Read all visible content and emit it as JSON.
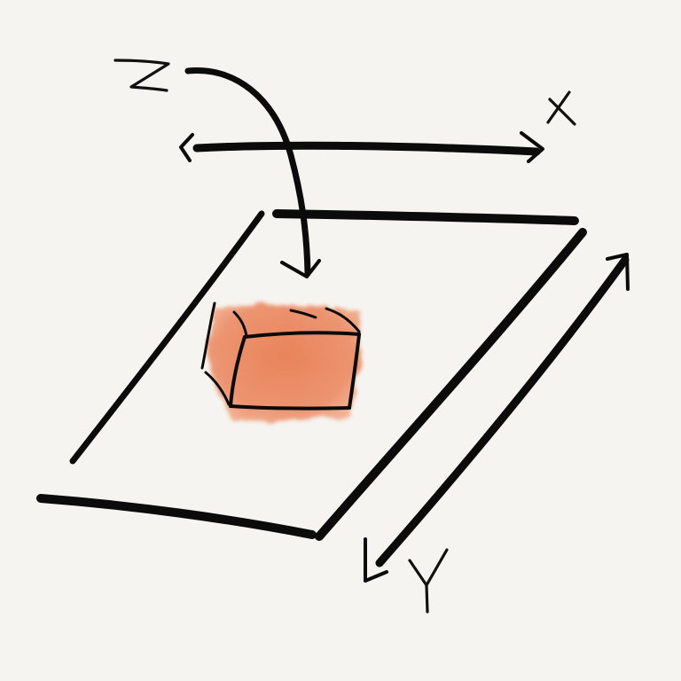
{
  "labels": {
    "x_axis": "X",
    "y_axis": "Y",
    "z_axis": "Z"
  },
  "colors": {
    "background": "#f5f4f0",
    "ink": "#0b0b0b",
    "block_fill": "#e9875f",
    "block_fill_light": "#f2b79b"
  }
}
